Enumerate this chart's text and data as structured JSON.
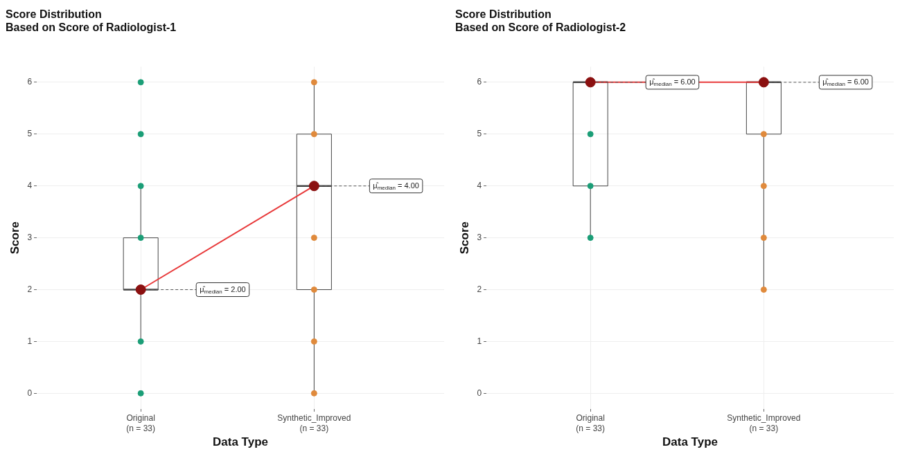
{
  "chart_data": [
    {
      "type": "box",
      "title": "Score Distribution",
      "subtitle": "Based on Score of Radiologist-1",
      "xlabel": "Data Type",
      "ylabel": "Score",
      "categories": [
        "Original\n(n = 33)",
        "Synthetic_Improved\n(n = 33)"
      ],
      "boxes": [
        {
          "low": 1,
          "q1": 2,
          "median": 2,
          "q3": 3,
          "high": 4
        },
        {
          "low": 0,
          "q1": 2,
          "median": 4,
          "q3": 5,
          "high": 6
        }
      ],
      "series": [
        {
          "type": "scatter",
          "color": "#1b9e77",
          "marker": "circle",
          "x": [
            "Original\n(n = 33)",
            "Original\n(n = 33)",
            "Original\n(n = 33)",
            "Original\n(n = 33)",
            "Original\n(n = 33)",
            "Original\n(n = 33)"
          ],
          "values": [
            0,
            1,
            3,
            4,
            5,
            6
          ]
        },
        {
          "type": "scatter",
          "color": "#e08a3c",
          "marker": "circle",
          "x": [
            "Synthetic_Improved\n(n = 33)",
            "Synthetic_Improved\n(n = 33)",
            "Synthetic_Improved\n(n = 33)",
            "Synthetic_Improved\n(n = 33)",
            "Synthetic_Improved\n(n = 33)",
            "Synthetic_Improved\n(n = 33)"
          ],
          "values": [
            0,
            1,
            2,
            3,
            5,
            6
          ]
        },
        {
          "type": "line",
          "color": "#e8393a",
          "x": [
            "Original\n(n = 33)",
            "Synthetic_Improved\n(n = 33)"
          ],
          "values": [
            2,
            4
          ]
        },
        {
          "type": "scatter",
          "color": "#8b1010",
          "marker": "circle",
          "x": [
            "Original\n(n = 33)",
            "Synthetic_Improved\n(n = 33)"
          ],
          "values": [
            2,
            4
          ]
        }
      ],
      "annotations": [
        {
          "text": "μ̂$_{median}$ = 2.00",
          "x": "Original\n(n = 33)",
          "y": 2
        },
        {
          "text": "μ̂$_{median}$ = 4.00",
          "x": "Synthetic_Improved\n(n = 33)",
          "y": 4
        }
      ],
      "ylim": [
        -0.3,
        6.3
      ],
      "yticks": [
        0,
        1,
        2,
        3,
        4,
        5,
        6
      ],
      "grid": true
    },
    {
      "type": "box",
      "title": "Score Distribution",
      "subtitle": "Based on Score of Radiologist-2",
      "xlabel": "Data Type",
      "ylabel": "Score",
      "categories": [
        "Original\n(n = 33)",
        "Synthetic_Improved\n(n = 33)"
      ],
      "boxes": [
        {
          "low": 3,
          "q1": 4,
          "median": 6,
          "q3": 6,
          "high": 6
        },
        {
          "low": 2,
          "q1": 5,
          "median": 6,
          "q3": 6,
          "high": 6
        }
      ],
      "series": [
        {
          "type": "scatter",
          "color": "#1b9e77",
          "marker": "circle",
          "x": [
            "Original\n(n = 33)",
            "Original\n(n = 33)",
            "Original\n(n = 33)"
          ],
          "values": [
            3,
            4,
            5
          ]
        },
        {
          "type": "scatter",
          "color": "#e08a3c",
          "marker": "circle",
          "x": [
            "Synthetic_Improved\n(n = 33)",
            "Synthetic_Improved\n(n = 33)",
            "Synthetic_Improved\n(n = 33)",
            "Synthetic_Improved\n(n = 33)"
          ],
          "values": [
            2,
            3,
            4,
            5
          ]
        },
        {
          "type": "line",
          "color": "#e8393a",
          "x": [
            "Original\n(n = 33)",
            "Synthetic_Improved\n(n = 33)"
          ],
          "values": [
            6,
            6
          ]
        },
        {
          "type": "scatter",
          "color": "#8b1010",
          "marker": "circle",
          "x": [
            "Original\n(n = 33)",
            "Synthetic_Improved\n(n = 33)"
          ],
          "values": [
            6,
            6
          ]
        }
      ],
      "annotations": [
        {
          "text": "μ̂$_{median}$ = 6.00",
          "x": "Original\n(n = 33)",
          "y": 6
        },
        {
          "text": "μ̂$_{median}$ = 6.00",
          "x": "Synthetic_Improved\n(n = 33)",
          "y": 6
        }
      ],
      "ylim": [
        -0.3,
        6.3
      ],
      "yticks": [
        0,
        1,
        2,
        3,
        4,
        5,
        6
      ],
      "grid": true
    }
  ]
}
